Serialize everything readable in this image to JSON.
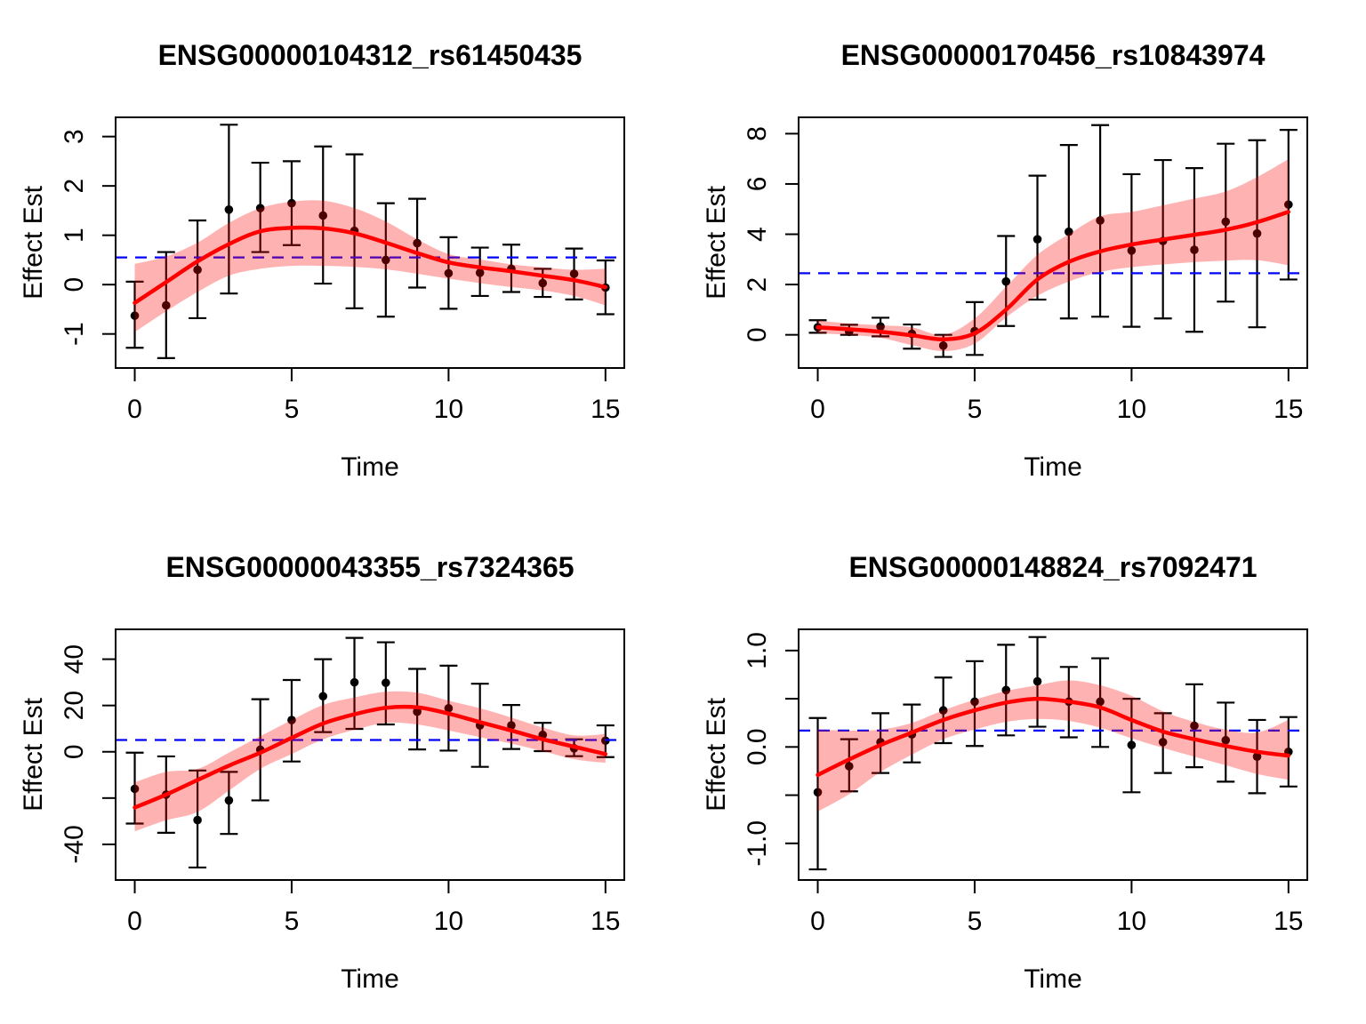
{
  "style": {
    "background": "#FFFFFF",
    "fit_color": "#FF0000",
    "band_color": "rgba(255,0,0,0.30)",
    "hline_color": "#0000FF",
    "point_color": "#000000",
    "axis_color": "#000000"
  },
  "chart_data": [
    {
      "type": "scatter",
      "title": "ENSG00000104312_rs61450435",
      "xlabel": "Time",
      "ylabel": "Effect Est",
      "legend": "none",
      "grid": "off",
      "x": [
        0,
        1,
        2,
        3,
        4,
        5,
        6,
        7,
        8,
        9,
        10,
        11,
        12,
        13,
        14,
        15
      ],
      "y": [
        -0.63,
        -0.42,
        0.3,
        1.52,
        1.55,
        1.65,
        1.4,
        1.09,
        0.5,
        0.84,
        0.23,
        0.24,
        0.32,
        0.03,
        0.22,
        -0.06
      ],
      "ci_lower": [
        -1.28,
        -1.49,
        -0.68,
        -0.18,
        0.66,
        0.8,
        0.02,
        -0.48,
        -0.65,
        -0.06,
        -0.49,
        -0.23,
        -0.15,
        -0.25,
        -0.3,
        -0.6
      ],
      "ci_upper": [
        0.06,
        0.66,
        1.3,
        3.24,
        2.47,
        2.5,
        2.8,
        2.64,
        1.65,
        1.74,
        0.96,
        0.75,
        0.81,
        0.32,
        0.73,
        0.49
      ],
      "fit": [
        -0.37,
        0.05,
        0.47,
        0.82,
        1.08,
        1.15,
        1.14,
        1.04,
        0.85,
        0.64,
        0.45,
        0.35,
        0.27,
        0.18,
        0.09,
        -0.05
      ],
      "band_lower": [
        -0.96,
        -0.54,
        -0.15,
        0.18,
        0.32,
        0.38,
        0.38,
        0.36,
        0.31,
        0.22,
        0.12,
        0.03,
        -0.05,
        -0.12,
        -0.23,
        -0.42
      ],
      "band_upper": [
        0.42,
        0.57,
        0.85,
        1.25,
        1.55,
        1.68,
        1.7,
        1.55,
        1.28,
        0.92,
        0.62,
        0.51,
        0.41,
        0.35,
        0.3,
        0.32
      ],
      "hline": 0.55,
      "xlim": [
        -0.61,
        15.6
      ],
      "ylim": [
        -1.69,
        3.39
      ],
      "xticks": [
        {
          "v": 0,
          "label": "0"
        },
        {
          "v": 5,
          "label": "5"
        },
        {
          "v": 10,
          "label": "10"
        },
        {
          "v": 15,
          "label": "15"
        }
      ],
      "yticks": [
        {
          "v": 3,
          "label": "3"
        },
        {
          "v": 2,
          "label": "2"
        },
        {
          "v": 1,
          "label": "1"
        },
        {
          "v": 0,
          "label": "0"
        },
        {
          "v": -1,
          "label": "-1"
        }
      ]
    },
    {
      "type": "scatter",
      "title": "ENSG00000170456_rs10843974",
      "xlabel": "Time",
      "ylabel": "Effect Est",
      "legend": "none",
      "grid": "off",
      "x": [
        0,
        1,
        2,
        3,
        4,
        5,
        6,
        7,
        8,
        9,
        10,
        11,
        12,
        13,
        14,
        15
      ],
      "y": [
        0.3,
        0.12,
        0.33,
        0.04,
        -0.43,
        0.15,
        2.12,
        3.8,
        4.1,
        4.55,
        3.35,
        3.73,
        3.38,
        4.5,
        4.03,
        5.18
      ],
      "ci_lower": [
        0.08,
        0.0,
        -0.06,
        -0.55,
        -0.88,
        -0.8,
        0.35,
        1.4,
        0.65,
        0.72,
        0.32,
        0.65,
        0.12,
        1.32,
        0.3,
        2.2
      ],
      "ci_upper": [
        0.58,
        0.4,
        0.68,
        0.41,
        0.0,
        1.3,
        3.93,
        6.33,
        7.55,
        8.34,
        6.39,
        6.95,
        6.63,
        7.6,
        7.74,
        8.15
      ],
      "fit": [
        0.3,
        0.22,
        0.12,
        -0.02,
        -0.18,
        0.06,
        1.0,
        2.2,
        2.9,
        3.32,
        3.59,
        3.79,
        3.98,
        4.18,
        4.48,
        4.89
      ],
      "band_lower": [
        0.06,
        0.0,
        -0.12,
        -0.41,
        -0.65,
        -0.35,
        0.69,
        1.55,
        2.12,
        2.5,
        2.69,
        2.8,
        2.89,
        2.95,
        2.97,
        2.77
      ],
      "band_upper": [
        0.57,
        0.45,
        0.38,
        0.3,
        0.0,
        0.65,
        1.91,
        3.18,
        4.0,
        4.71,
        4.89,
        5.15,
        5.42,
        5.7,
        6.27,
        6.99
      ],
      "hline": 2.45,
      "xlim": [
        -0.61,
        15.6
      ],
      "ylim": [
        -1.32,
        8.65
      ],
      "xticks": [
        {
          "v": 0,
          "label": "0"
        },
        {
          "v": 5,
          "label": "5"
        },
        {
          "v": 10,
          "label": "10"
        },
        {
          "v": 15,
          "label": "15"
        }
      ],
      "yticks": [
        {
          "v": 8,
          "label": "8"
        },
        {
          "v": 6,
          "label": "6"
        },
        {
          "v": 4,
          "label": "4"
        },
        {
          "v": 2,
          "label": "2"
        },
        {
          "v": 0,
          "label": "0"
        }
      ]
    },
    {
      "type": "scatter",
      "title": "ENSG00000043355_rs7324365",
      "xlabel": "Time",
      "ylabel": "Effect Est",
      "legend": "none",
      "grid": "off",
      "x": [
        0,
        1,
        2,
        3,
        4,
        5,
        6,
        7,
        8,
        9,
        10,
        11,
        12,
        13,
        14,
        15
      ],
      "y": [
        -16,
        -18.5,
        -29.5,
        -21,
        0.9,
        13.7,
        24,
        30,
        29.8,
        17.3,
        18.8,
        11.4,
        11.4,
        7.3,
        1.5,
        4.8
      ],
      "ci_lower": [
        -31,
        -35,
        -50,
        -35.5,
        -21,
        -4.2,
        8.5,
        9.9,
        11.8,
        1.0,
        0.5,
        -6.5,
        1.2,
        0.3,
        -1.9,
        -2.3
      ],
      "ci_upper": [
        -0.4,
        -2.0,
        -8.1,
        -8.7,
        22.7,
        31,
        40,
        49.2,
        47.3,
        35.8,
        37.2,
        29.4,
        20.2,
        12.5,
        5.4,
        11.4
      ],
      "fit": [
        -24.1,
        -18.5,
        -12.2,
        -6.0,
        -0.4,
        6.0,
        12.2,
        16.2,
        19.0,
        19.2,
        16.5,
        12.8,
        9.2,
        5.4,
        2.2,
        -1.0
      ],
      "band_lower": [
        -34.4,
        -29.6,
        -26.0,
        -16.8,
        -7.4,
        -1.0,
        5.4,
        9.5,
        12.5,
        11.8,
        9.2,
        6.3,
        3.5,
        0.3,
        -3.2,
        -4.8
      ],
      "band_upper": [
        -13.2,
        -8.7,
        -7.4,
        -0.4,
        6.7,
        13.7,
        20.2,
        23.5,
        25.9,
        25.5,
        22.1,
        18.8,
        14.8,
        10.5,
        7.1,
        7.7
      ],
      "hline": 5.1,
      "xlim": [
        -0.61,
        15.6
      ],
      "ylim": [
        -55.4,
        52.9
      ],
      "xticks": [
        {
          "v": 0,
          "label": "0"
        },
        {
          "v": 5,
          "label": "5"
        },
        {
          "v": 10,
          "label": "10"
        },
        {
          "v": 15,
          "label": "15"
        }
      ],
      "yticks": [
        {
          "v": 40,
          "label": "40"
        },
        {
          "v": 20,
          "label": "20"
        },
        {
          "v": 0,
          "label": "0"
        },
        {
          "v": -20,
          "label": ""
        },
        {
          "v": -40,
          "label": "-40"
        }
      ]
    },
    {
      "type": "scatter",
      "title": "ENSG00000148824_rs7092471",
      "xlabel": "Time",
      "ylabel": "Effect Est",
      "legend": "none",
      "grid": "off",
      "x": [
        0,
        1,
        2,
        3,
        4,
        5,
        6,
        7,
        8,
        9,
        10,
        11,
        12,
        13,
        14,
        15
      ],
      "y": [
        -0.47,
        -0.2,
        0.05,
        0.13,
        0.38,
        0.47,
        0.59,
        0.68,
        0.47,
        0.47,
        0.02,
        0.05,
        0.22,
        0.07,
        -0.1,
        -0.05
      ],
      "ci_lower": [
        -1.27,
        -0.46,
        -0.27,
        -0.16,
        0.04,
        0.01,
        0.12,
        0.21,
        0.1,
        0.0,
        -0.47,
        -0.27,
        -0.21,
        -0.36,
        -0.48,
        -0.41
      ],
      "ci_upper": [
        0.3,
        0.08,
        0.35,
        0.44,
        0.72,
        0.89,
        1.06,
        1.14,
        0.83,
        0.92,
        0.5,
        0.35,
        0.65,
        0.46,
        0.28,
        0.31
      ],
      "fit": [
        -0.29,
        -0.13,
        0.02,
        0.15,
        0.28,
        0.38,
        0.46,
        0.5,
        0.47,
        0.41,
        0.28,
        0.16,
        0.08,
        0.01,
        -0.05,
        -0.09
      ],
      "band_lower": [
        -0.67,
        -0.49,
        -0.26,
        -0.08,
        0.08,
        0.18,
        0.26,
        0.29,
        0.27,
        0.2,
        0.09,
        -0.01,
        -0.1,
        -0.19,
        -0.28,
        -0.34
      ],
      "band_upper": [
        0.18,
        0.17,
        0.18,
        0.25,
        0.38,
        0.49,
        0.58,
        0.64,
        0.69,
        0.64,
        0.53,
        0.37,
        0.26,
        0.18,
        0.15,
        0.28
      ],
      "hline": 0.17,
      "xlim": [
        -0.61,
        15.6
      ],
      "ylim": [
        -1.38,
        1.22
      ],
      "xticks": [
        {
          "v": 0,
          "label": "0"
        },
        {
          "v": 5,
          "label": "5"
        },
        {
          "v": 10,
          "label": "10"
        },
        {
          "v": 15,
          "label": "15"
        }
      ],
      "yticks": [
        {
          "v": 1.0,
          "label": "1.0"
        },
        {
          "v": 0.5,
          "label": ""
        },
        {
          "v": 0.0,
          "label": "0.0"
        },
        {
          "v": -0.5,
          "label": ""
        },
        {
          "v": -1.0,
          "label": "-1.0"
        }
      ]
    }
  ]
}
